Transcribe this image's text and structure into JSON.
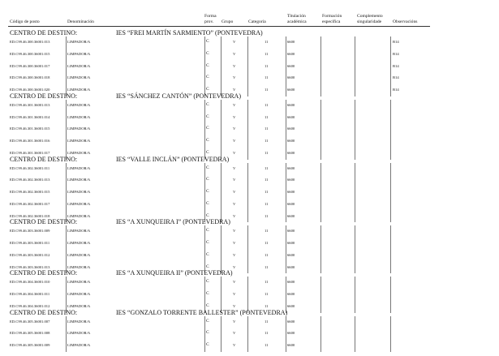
{
  "header": {
    "codigo": "Código de posto",
    "denominacion": "Denominación",
    "forma": "Forma\nprov.",
    "grupo": "Grupo",
    "categoria": "Categoría",
    "titulacion": "Titulación\nacadémica",
    "formacion": "Formación\nespecífica",
    "complemento": "Complemento\nsingularidade",
    "observaciones": "Observacións"
  },
  "section_label": "CENTRO DE DESTINO:",
  "sections": [
    {
      "name": "IES “FREI MARTÍN SARMIENTO” (PONTEVEDRA)",
      "rows": [
        {
          "code": "ED.C99.46.300.36001.013",
          "den": "LIMPADOR/A",
          "forma": "C",
          "grupo": "V",
          "cat": "11",
          "tit": "6600",
          "obs": "B14"
        },
        {
          "code": "ED.C99.46.300.36001.015",
          "den": "LIMPADOR/A",
          "forma": "C",
          "grupo": "V",
          "cat": "11",
          "tit": "6600",
          "obs": "B14"
        },
        {
          "code": "ED.C99.46.300.36001.017",
          "den": "LIMPADOR/A",
          "forma": "C",
          "grupo": "V",
          "cat": "11",
          "tit": "6600",
          "obs": "B14"
        },
        {
          "code": "ED.C99.46.300.36001.018",
          "den": "LIMPADOR/A",
          "forma": "C",
          "grupo": "V",
          "cat": "11",
          "tit": "6600",
          "obs": "B14"
        },
        {
          "code": "ED.C99.46.300.36001.020",
          "den": "LIMPADOR/A",
          "forma": "C",
          "grupo": "V",
          "cat": "11",
          "tit": "6600",
          "obs": "B14"
        }
      ]
    },
    {
      "name": "IES “SÁNCHEZ CANTÓN” (PONTEVEDRA)",
      "rows": [
        {
          "code": "ED.C99.46.301.36001.013",
          "den": "LIMPADOR/A",
          "forma": "C",
          "grupo": "V",
          "cat": "11",
          "tit": "6600",
          "obs": ""
        },
        {
          "code": "ED.C99.46.301.36001.014",
          "den": "LIMPADOR/A",
          "forma": "C",
          "grupo": "V",
          "cat": "11",
          "tit": "6600",
          "obs": ""
        },
        {
          "code": "ED.C99.46.301.36001.015",
          "den": "LIMPADOR/A",
          "forma": "C",
          "grupo": "V",
          "cat": "11",
          "tit": "6600",
          "obs": ""
        },
        {
          "code": "ED.C99.46.301.36001.016",
          "den": "LIMPADOR/A",
          "forma": "C",
          "grupo": "V",
          "cat": "11",
          "tit": "6600",
          "obs": ""
        },
        {
          "code": "ED.C99.46.301.36001.017",
          "den": "LIMPADOR/A",
          "forma": "C",
          "grupo": "V",
          "cat": "11",
          "tit": "6600",
          "obs": ""
        }
      ]
    },
    {
      "name": "IES “VALLE INCLÁN” (PONTEVEDRA)",
      "rows": [
        {
          "code": "ED.C99.46.302.36001.011",
          "den": "LIMPADOR/A",
          "forma": "C",
          "grupo": "V",
          "cat": "11",
          "tit": "6600",
          "obs": ""
        },
        {
          "code": "ED.C99.46.302.36001.013",
          "den": "LIMPADOR/A",
          "forma": "C",
          "grupo": "V",
          "cat": "11",
          "tit": "6600",
          "obs": ""
        },
        {
          "code": "ED.C99.46.302.36001.015",
          "den": "LIMPADOR/A",
          "forma": "C",
          "grupo": "V",
          "cat": "11",
          "tit": "6600",
          "obs": ""
        },
        {
          "code": "ED.C99.46.302.36001.017",
          "den": "LIMPADOR/A",
          "forma": "C",
          "grupo": "V",
          "cat": "11",
          "tit": "6600",
          "obs": ""
        },
        {
          "code": "ED.C99.46.302.36001.018",
          "den": "LIMPADOR/A",
          "forma": "C",
          "grupo": "V",
          "cat": "11",
          "tit": "6600",
          "obs": ""
        }
      ]
    },
    {
      "name": "IES “A XUNQUEIRA I” (PONTEVEDRA)",
      "rows": [
        {
          "code": "ED.C99.46.303.36001.009",
          "den": "LIMPADOR/A",
          "forma": "C",
          "grupo": "V",
          "cat": "11",
          "tit": "6600",
          "obs": ""
        },
        {
          "code": "ED.C99.46.303.36001.011",
          "den": "LIMPADOR/A",
          "forma": "C",
          "grupo": "V",
          "cat": "11",
          "tit": "6600",
          "obs": ""
        },
        {
          "code": "ED.C99.46.303.36001.012",
          "den": "LIMPADOR/A",
          "forma": "C",
          "grupo": "V",
          "cat": "11",
          "tit": "6600",
          "obs": ""
        },
        {
          "code": "ED.C99.46.303.36001.013",
          "den": "LIMPADOR/A",
          "forma": "C",
          "grupo": "V",
          "cat": "11",
          "tit": "6600",
          "obs": ""
        }
      ]
    },
    {
      "name": "IES “A XUNQUEIRA II” (PONTEVEDRA)",
      "rows": [
        {
          "code": "ED.C99.46.304.36001.010",
          "den": "LIMPADOR/A",
          "forma": "C",
          "grupo": "V",
          "cat": "11",
          "tit": "6600",
          "obs": ""
        },
        {
          "code": "ED.C99.46.304.36001.011",
          "den": "LIMPADOR/A",
          "forma": "C",
          "grupo": "V",
          "cat": "11",
          "tit": "6600",
          "obs": ""
        },
        {
          "code": "ED.C99.46.304.36001.012",
          "den": "LIMPADOR/A",
          "forma": "C",
          "grupo": "V",
          "cat": "11",
          "tit": "6600",
          "obs": ""
        }
      ]
    },
    {
      "name": "IES “GONZALO TORRENTE BALLESTER” (PONTEVEDRA)",
      "rows": [
        {
          "code": "ED.C99.46.305.36001.007",
          "den": "LIMPADOR/A",
          "forma": "C",
          "grupo": "V",
          "cat": "11",
          "tit": "6600",
          "obs": ""
        },
        {
          "code": "ED.C99.46.305.36001.008",
          "den": "LIMPADOR/A",
          "forma": "C",
          "grupo": "V",
          "cat": "11",
          "tit": "6600",
          "obs": ""
        },
        {
          "code": "ED.C99.46.305.36001.009",
          "den": "LIMPADOR/A",
          "forma": "C",
          "grupo": "V",
          "cat": "11",
          "tit": "6600",
          "obs": ""
        }
      ]
    }
  ]
}
